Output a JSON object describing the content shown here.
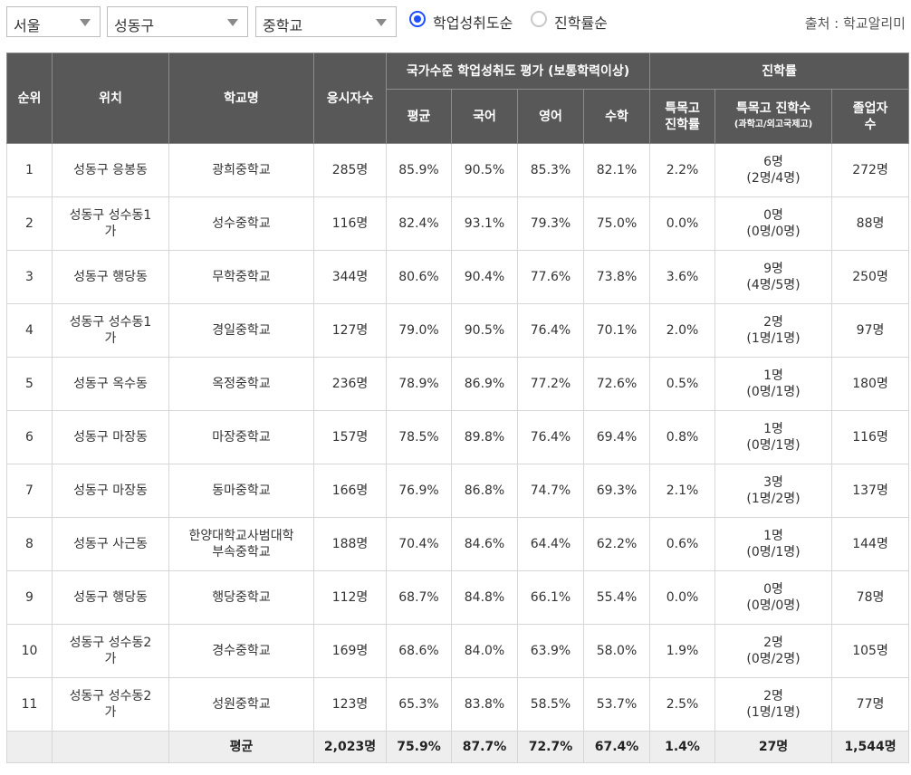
{
  "filters": {
    "region": "서울",
    "district": "성동구",
    "school_type": "중학교",
    "sort_options": [
      "학업성취도순",
      "진학률순"
    ],
    "sort_selected": "학업성취도순"
  },
  "source": "출처 : 학교알리미",
  "header": {
    "rank": "순위",
    "location": "위치",
    "school": "학교명",
    "examinees": "응시자수",
    "achievement_group": "국가수준 학업성취도 평가 (보통학력이상)",
    "avg": "평균",
    "korean": "국어",
    "english": "영어",
    "math": "수학",
    "progress_group": "진학률",
    "special_rate_1": "특목고",
    "special_rate_2": "진학률",
    "special_count_1": "특목고 진학수",
    "special_count_2": "(과학고/외고국제고)",
    "graduates_1": "졸업자",
    "graduates_2": "수"
  },
  "rows": [
    {
      "rank": "1",
      "loc1": "성동구 응봉동",
      "loc2": "",
      "school1": "광희중학교",
      "school2": "",
      "examinees": "285명",
      "avg": "85.9%",
      "korean": "90.5%",
      "english": "85.3%",
      "math": "82.1%",
      "special_rate": "2.2%",
      "special_count": "6명",
      "special_detail": "(2명/4명)",
      "graduates": "272명"
    },
    {
      "rank": "2",
      "loc1": "성동구 성수동1",
      "loc2": "가",
      "school1": "성수중학교",
      "school2": "",
      "examinees": "116명",
      "avg": "82.4%",
      "korean": "93.1%",
      "english": "79.3%",
      "math": "75.0%",
      "special_rate": "0.0%",
      "special_count": "0명",
      "special_detail": "(0명/0명)",
      "graduates": "88명"
    },
    {
      "rank": "3",
      "loc1": "성동구 행당동",
      "loc2": "",
      "school1": "무학중학교",
      "school2": "",
      "examinees": "344명",
      "avg": "80.6%",
      "korean": "90.4%",
      "english": "77.6%",
      "math": "73.8%",
      "special_rate": "3.6%",
      "special_count": "9명",
      "special_detail": "(4명/5명)",
      "graduates": "250명"
    },
    {
      "rank": "4",
      "loc1": "성동구 성수동1",
      "loc2": "가",
      "school1": "경일중학교",
      "school2": "",
      "examinees": "127명",
      "avg": "79.0%",
      "korean": "90.5%",
      "english": "76.4%",
      "math": "70.1%",
      "special_rate": "2.0%",
      "special_count": "2명",
      "special_detail": "(1명/1명)",
      "graduates": "97명"
    },
    {
      "rank": "5",
      "loc1": "성동구 옥수동",
      "loc2": "",
      "school1": "옥정중학교",
      "school2": "",
      "examinees": "236명",
      "avg": "78.9%",
      "korean": "86.9%",
      "english": "77.2%",
      "math": "72.6%",
      "special_rate": "0.5%",
      "special_count": "1명",
      "special_detail": "(0명/1명)",
      "graduates": "180명"
    },
    {
      "rank": "6",
      "loc1": "성동구 마장동",
      "loc2": "",
      "school1": "마장중학교",
      "school2": "",
      "examinees": "157명",
      "avg": "78.5%",
      "korean": "89.8%",
      "english": "76.4%",
      "math": "69.4%",
      "special_rate": "0.8%",
      "special_count": "1명",
      "special_detail": "(0명/1명)",
      "graduates": "116명"
    },
    {
      "rank": "7",
      "loc1": "성동구 마장동",
      "loc2": "",
      "school1": "동마중학교",
      "school2": "",
      "examinees": "166명",
      "avg": "76.9%",
      "korean": "86.8%",
      "english": "74.7%",
      "math": "69.3%",
      "special_rate": "2.1%",
      "special_count": "3명",
      "special_detail": "(1명/2명)",
      "graduates": "137명"
    },
    {
      "rank": "8",
      "loc1": "성동구 사근동",
      "loc2": "",
      "school1": "한양대학교사범대학",
      "school2": "부속중학교",
      "examinees": "188명",
      "avg": "70.4%",
      "korean": "84.6%",
      "english": "64.4%",
      "math": "62.2%",
      "special_rate": "0.6%",
      "special_count": "1명",
      "special_detail": "(0명/1명)",
      "graduates": "144명"
    },
    {
      "rank": "9",
      "loc1": "성동구 행당동",
      "loc2": "",
      "school1": "행당중학교",
      "school2": "",
      "examinees": "112명",
      "avg": "68.7%",
      "korean": "84.8%",
      "english": "66.1%",
      "math": "55.4%",
      "special_rate": "0.0%",
      "special_count": "0명",
      "special_detail": "(0명/0명)",
      "graduates": "78명"
    },
    {
      "rank": "10",
      "loc1": "성동구 성수동2",
      "loc2": "가",
      "school1": "경수중학교",
      "school2": "",
      "examinees": "169명",
      "avg": "68.6%",
      "korean": "84.0%",
      "english": "63.9%",
      "math": "58.0%",
      "special_rate": "1.9%",
      "special_count": "2명",
      "special_detail": "(0명/2명)",
      "graduates": "105명"
    },
    {
      "rank": "11",
      "loc1": "성동구 성수동2",
      "loc2": "가",
      "school1": "성원중학교",
      "school2": "",
      "examinees": "123명",
      "avg": "65.3%",
      "korean": "83.8%",
      "english": "58.5%",
      "math": "53.7%",
      "special_rate": "2.5%",
      "special_count": "2명",
      "special_detail": "(1명/1명)",
      "graduates": "77명"
    }
  ],
  "footer": {
    "label": "평균",
    "examinees": "2,023명",
    "avg": "75.9%",
    "korean": "87.7%",
    "english": "72.7%",
    "math": "67.4%",
    "special_rate": "1.4%",
    "special_count": "27명",
    "graduates": "1,544명"
  },
  "colors": {
    "header_bg": "#585858",
    "radio_accent": "#1f4fff",
    "footer_bg": "#eeeeee"
  }
}
